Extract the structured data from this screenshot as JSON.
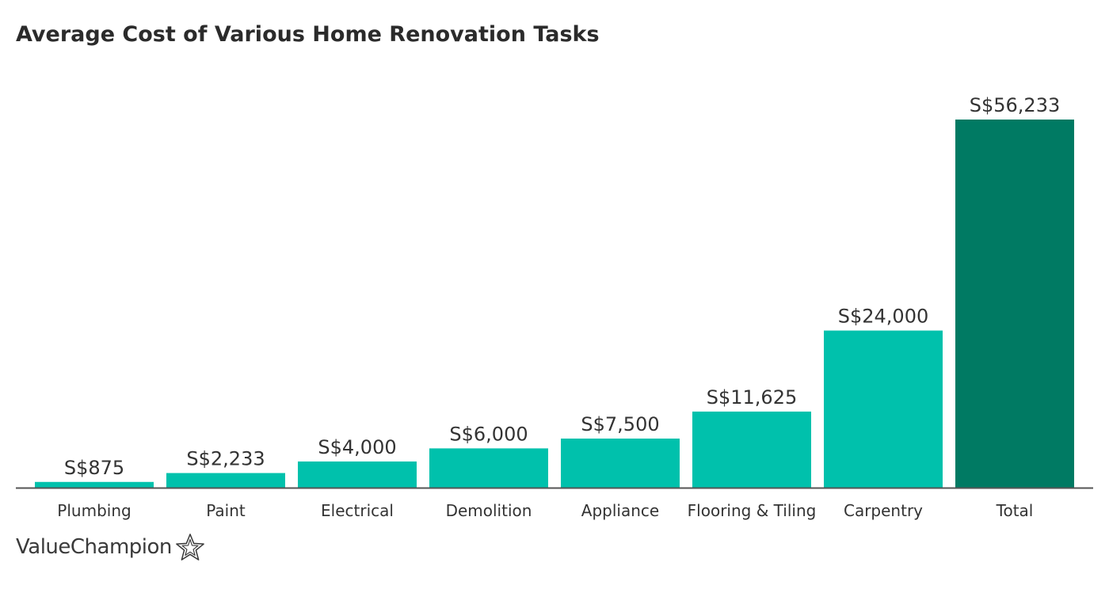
{
  "chart_data": {
    "type": "bar",
    "title": "Average Cost of Various Home Renovation Tasks",
    "xlabel": "",
    "ylabel": "",
    "categories": [
      "Plumbing",
      "Paint",
      "Electrical",
      "Demolition",
      "Appliance",
      "Flooring & Tiling",
      "Carpentry",
      "Total"
    ],
    "values": [
      875,
      2233,
      4000,
      6000,
      7500,
      11625,
      24000,
      56233
    ],
    "value_labels": [
      "S$875",
      "S$2,233",
      "S$4,000",
      "S$6,000",
      "S$7,500",
      "S$11,625",
      "S$24,000",
      "S$56,233"
    ],
    "ylim": [
      0,
      56233
    ],
    "grid": false,
    "bar_color": "#00c1ac",
    "highlight_color": "#007a63",
    "highlight_category": "Total",
    "axis_color": "#555555"
  },
  "brand": {
    "name": "ValueChampion",
    "icon": "star-outline-icon"
  }
}
